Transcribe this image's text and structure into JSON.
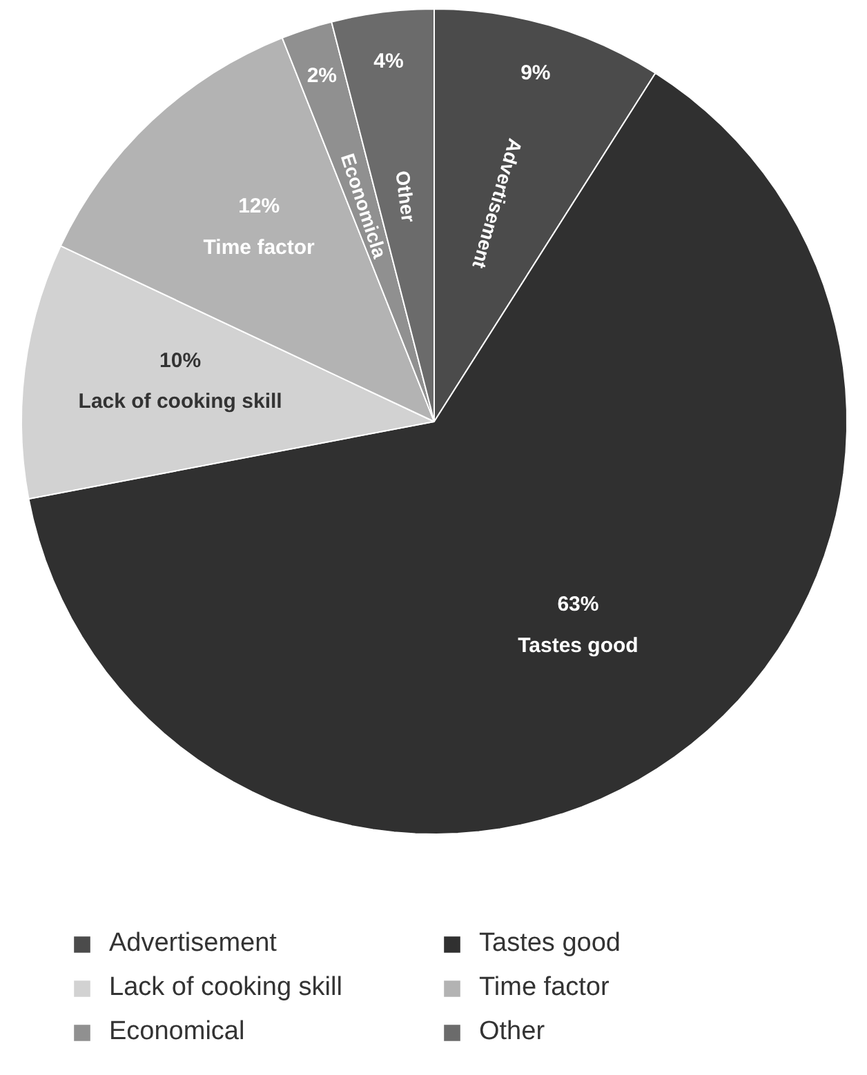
{
  "chart_data": {
    "type": "pie",
    "categories": [
      "Advertisement",
      "Tastes good",
      "Lack of cooking skill",
      "Time factor",
      "Economical",
      "Other"
    ],
    "values": [
      9,
      63,
      10,
      12,
      2,
      4
    ],
    "colors": [
      "#4b4b4b",
      "#303030",
      "#d2d2d2",
      "#b3b3b3",
      "#909090",
      "#6b6b6b"
    ],
    "value_labels": [
      "9%",
      "63%",
      "10%",
      "12%",
      "2%",
      "4%"
    ],
    "annotations": [
      "Advertisement",
      "Tastes good",
      "Lack of cooking skill",
      "Time factor",
      "Economicla",
      "Other"
    ],
    "legend": "bottom"
  }
}
